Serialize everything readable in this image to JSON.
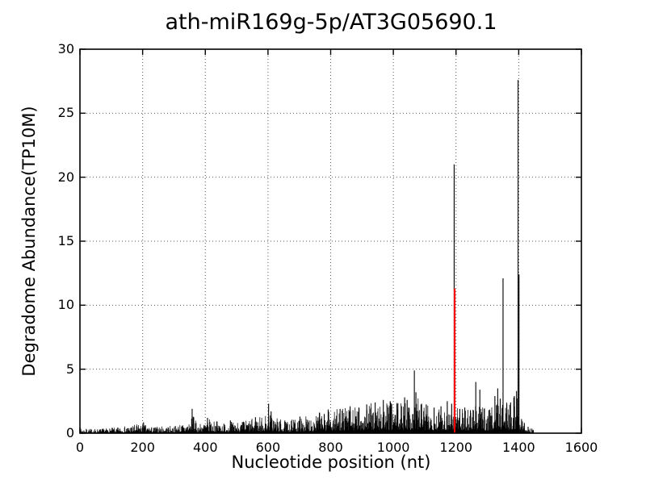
{
  "chart_data": {
    "type": "bar",
    "title": "ath-miR169g-5p/AT3G05690.1",
    "xlabel": "Nucleotide position (nt)",
    "ylabel": "Degradome Abundance(TP10M)",
    "xlim": [
      0,
      1600
    ],
    "ylim": [
      0,
      30
    ],
    "x_ticks": [
      0,
      200,
      400,
      600,
      800,
      1000,
      1200,
      1400,
      1600
    ],
    "y_ticks": [
      0,
      5,
      10,
      15,
      20,
      25,
      30
    ],
    "grid": {
      "style": "dotted",
      "color": "#555555"
    },
    "bar_color": "#000000",
    "axis_color": "#000000",
    "background_color": "#ffffff",
    "cleavage_marker": {
      "x": 1194,
      "height": 11.3,
      "color": "#ff0000"
    },
    "major_peaks": [
      [
        203,
        0.85
      ],
      [
        358,
        1.9
      ],
      [
        363,
        1.25
      ],
      [
        407,
        1.2
      ],
      [
        480,
        1.0
      ],
      [
        560,
        1.25
      ],
      [
        602,
        2.3
      ],
      [
        610,
        1.7
      ],
      [
        702,
        1.3
      ],
      [
        764,
        1.6
      ],
      [
        792,
        1.85
      ],
      [
        830,
        1.9
      ],
      [
        862,
        2.1
      ],
      [
        890,
        2.0
      ],
      [
        915,
        2.25
      ],
      [
        942,
        2.4
      ],
      [
        968,
        2.6
      ],
      [
        990,
        2.5
      ],
      [
        1012,
        2.3
      ],
      [
        1036,
        2.8
      ],
      [
        1044,
        2.6
      ],
      [
        1067,
        4.9
      ],
      [
        1072,
        3.2
      ],
      [
        1090,
        2.3
      ],
      [
        1105,
        2.25
      ],
      [
        1130,
        2.0
      ],
      [
        1152,
        2.1
      ],
      [
        1172,
        2.5
      ],
      [
        1186,
        2.3
      ],
      [
        1194,
        21.0
      ],
      [
        1212,
        1.9
      ],
      [
        1228,
        2.0
      ],
      [
        1246,
        1.8
      ],
      [
        1263,
        4.0
      ],
      [
        1276,
        3.4
      ],
      [
        1290,
        1.9
      ],
      [
        1305,
        1.8
      ],
      [
        1324,
        2.9
      ],
      [
        1333,
        3.5
      ],
      [
        1341,
        2.7
      ],
      [
        1350,
        12.1
      ],
      [
        1362,
        2.3
      ],
      [
        1374,
        2.4
      ],
      [
        1386,
        2.9
      ],
      [
        1393,
        3.3
      ],
      [
        1398,
        27.6
      ],
      [
        1401,
        12.4
      ],
      [
        1409,
        1.1
      ],
      [
        1418,
        0.8
      ],
      [
        1430,
        0.5
      ],
      [
        1442,
        0.35
      ]
    ],
    "noise_envelope": [
      [
        0,
        0.35
      ],
      [
        60,
        0.35
      ],
      [
        120,
        0.45
      ],
      [
        195,
        0.75
      ],
      [
        230,
        0.5
      ],
      [
        300,
        0.6
      ],
      [
        345,
        0.9
      ],
      [
        360,
        1.4
      ],
      [
        375,
        0.7
      ],
      [
        410,
        1.1
      ],
      [
        460,
        0.85
      ],
      [
        520,
        1.0
      ],
      [
        560,
        1.2
      ],
      [
        605,
        1.6
      ],
      [
        650,
        1.0
      ],
      [
        700,
        1.2
      ],
      [
        760,
        1.6
      ],
      [
        820,
        1.9
      ],
      [
        880,
        2.1
      ],
      [
        940,
        2.4
      ],
      [
        990,
        2.5
      ],
      [
        1025,
        2.4
      ],
      [
        1045,
        2.7
      ],
      [
        1060,
        2.3
      ],
      [
        1075,
        3.0
      ],
      [
        1100,
        2.3
      ],
      [
        1135,
        2.0
      ],
      [
        1170,
        2.4
      ],
      [
        1195,
        2.3
      ],
      [
        1230,
        2.0
      ],
      [
        1265,
        2.2
      ],
      [
        1300,
        1.9
      ],
      [
        1330,
        2.8
      ],
      [
        1345,
        2.5
      ],
      [
        1370,
        2.4
      ],
      [
        1395,
        3.2
      ],
      [
        1403,
        1.2
      ],
      [
        1420,
        0.7
      ],
      [
        1440,
        0.4
      ],
      [
        1448,
        0.25
      ],
      [
        1450,
        0
      ]
    ],
    "noise_seed": 7,
    "data_end_nt": 1449
  }
}
